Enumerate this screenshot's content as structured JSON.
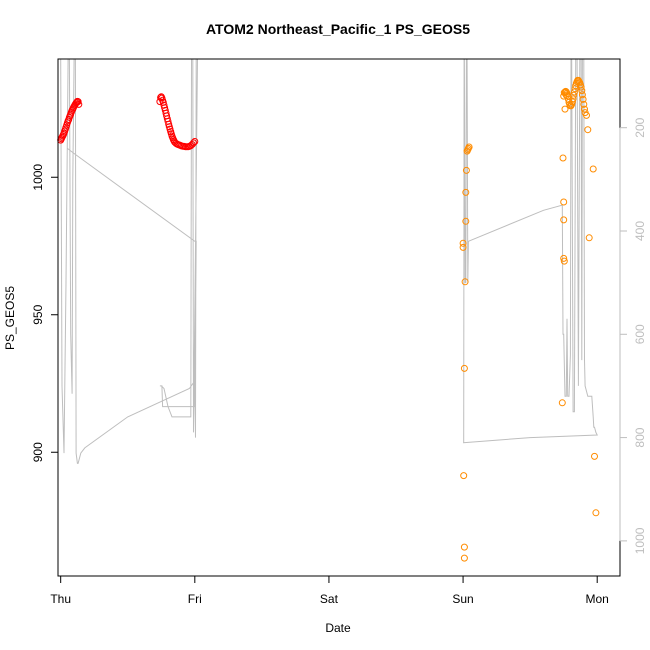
{
  "chart_data": {
    "type": "scatter",
    "title": "ATOM2 Northeast_Pacific_1 PS_GEOS5",
    "xlabel": "Date",
    "ylabel": "PS_GEOS5",
    "x_ticks": [
      "Thu",
      "Fri",
      "Sat",
      "Sun",
      "Mon"
    ],
    "xlim": [
      -0.02,
      4.17
    ],
    "ylim": [
      855,
      1043
    ],
    "y_ticks": [
      900,
      950,
      1000
    ],
    "right_axis": {
      "ylim": [
        1068,
        67
      ],
      "ticks": [
        200,
        400,
        600,
        800,
        1000
      ],
      "color": "#bebebe"
    },
    "colors": {
      "series_1": "#ff0000",
      "series_2": "#ff8c00",
      "altitude_trace": "#bebebe"
    },
    "series": [
      {
        "color": "#ff0000",
        "points": [
          [
            0.0,
            1013.5
          ],
          [
            0.005,
            1014.0
          ],
          [
            0.01,
            1014.5
          ],
          [
            0.015,
            1015.0
          ],
          [
            0.02,
            1015.5
          ],
          [
            0.025,
            1016.0
          ],
          [
            0.03,
            1016.8
          ],
          [
            0.035,
            1017.5
          ],
          [
            0.04,
            1018.2
          ],
          [
            0.045,
            1019.0
          ],
          [
            0.05,
            1019.8
          ],
          [
            0.055,
            1020.5
          ],
          [
            0.06,
            1021.0
          ],
          [
            0.065,
            1021.8
          ],
          [
            0.07,
            1022.4
          ],
          [
            0.075,
            1023.0
          ],
          [
            0.08,
            1023.7
          ],
          [
            0.085,
            1024.3
          ],
          [
            0.09,
            1024.8
          ],
          [
            0.095,
            1025.3
          ],
          [
            0.1,
            1025.8
          ],
          [
            0.105,
            1026.2
          ],
          [
            0.11,
            1026.6
          ],
          [
            0.115,
            1027.0
          ],
          [
            0.12,
            1027.3
          ],
          [
            0.125,
            1027.6
          ],
          [
            0.13,
            1027.5
          ],
          [
            0.135,
            1026.5
          ],
          [
            0.74,
            1027.5
          ],
          [
            0.745,
            1029.0
          ],
          [
            0.75,
            1029.3
          ],
          [
            0.755,
            1028.8
          ],
          [
            0.76,
            1028.0
          ],
          [
            0.765,
            1027.2
          ],
          [
            0.77,
            1026.2
          ],
          [
            0.775,
            1025.3
          ],
          [
            0.78,
            1024.3
          ],
          [
            0.785,
            1023.3
          ],
          [
            0.79,
            1022.3
          ],
          [
            0.795,
            1021.3
          ],
          [
            0.8,
            1020.3
          ],
          [
            0.805,
            1019.3
          ],
          [
            0.81,
            1018.4
          ],
          [
            0.815,
            1017.5
          ],
          [
            0.82,
            1016.6
          ],
          [
            0.825,
            1015.8
          ],
          [
            0.83,
            1015.0
          ],
          [
            0.835,
            1014.3
          ],
          [
            0.84,
            1013.7
          ],
          [
            0.845,
            1013.2
          ],
          [
            0.85,
            1012.8
          ],
          [
            0.86,
            1012.3
          ],
          [
            0.87,
            1012.0
          ],
          [
            0.88,
            1011.8
          ],
          [
            0.89,
            1011.6
          ],
          [
            0.9,
            1011.4
          ],
          [
            0.91,
            1011.3
          ],
          [
            0.92,
            1011.2
          ],
          [
            0.93,
            1011.1
          ],
          [
            0.94,
            1011.1
          ],
          [
            0.95,
            1011.1
          ],
          [
            0.96,
            1011.2
          ],
          [
            0.97,
            1011.5
          ],
          [
            0.98,
            1011.9
          ],
          [
            0.99,
            1012.5
          ],
          [
            1.0,
            1013.0
          ]
        ]
      },
      {
        "color": "#ff8c00",
        "points": [
          [
            3.0,
            976
          ],
          [
            3.0,
            974.5
          ],
          [
            3.005,
            891.5
          ],
          [
            3.01,
            865.5
          ],
          [
            3.01,
            861.5
          ],
          [
            3.01,
            930.5
          ],
          [
            3.015,
            962
          ],
          [
            3.02,
            984
          ],
          [
            3.02,
            994.5
          ],
          [
            3.025,
            1002.5
          ],
          [
            3.03,
            1009.5
          ],
          [
            3.035,
            1010
          ],
          [
            3.04,
            1010.5
          ],
          [
            3.045,
            1011
          ],
          [
            3.74,
            918
          ],
          [
            3.745,
            1007
          ],
          [
            3.75,
            991
          ],
          [
            3.75,
            984.5
          ],
          [
            3.75,
            970.5
          ],
          [
            3.755,
            969.5
          ],
          [
            3.75,
            1029.5
          ],
          [
            3.755,
            1030.8
          ],
          [
            3.76,
            1031.0
          ],
          [
            3.765,
            1031.2
          ],
          [
            3.77,
            1031.0
          ],
          [
            3.775,
            1030.5
          ],
          [
            3.78,
            1029.5
          ],
          [
            3.785,
            1028.3
          ],
          [
            3.79,
            1027.2
          ],
          [
            3.795,
            1026.5
          ],
          [
            3.8,
            1026.0
          ],
          [
            3.805,
            1026.0
          ],
          [
            3.81,
            1026.5
          ],
          [
            3.815,
            1027.4
          ],
          [
            3.82,
            1028.5
          ],
          [
            3.825,
            1029.8
          ],
          [
            3.83,
            1031.0
          ],
          [
            3.835,
            1032.2
          ],
          [
            3.84,
            1033.3
          ],
          [
            3.845,
            1034.2
          ],
          [
            3.85,
            1034.8
          ],
          [
            3.855,
            1035.2
          ],
          [
            3.86,
            1035.2
          ],
          [
            3.865,
            1034.8
          ],
          [
            3.87,
            1034.3
          ],
          [
            3.875,
            1033.6
          ],
          [
            3.88,
            1032.8
          ],
          [
            3.885,
            1031.5
          ],
          [
            3.89,
            1030.0
          ],
          [
            3.895,
            1028.3
          ],
          [
            3.9,
            1026.5
          ],
          [
            3.905,
            1024.8
          ],
          [
            3.91,
            1023.5
          ],
          [
            3.92,
            1022.5
          ],
          [
            3.93,
            1017.3
          ],
          [
            3.76,
            1024.8
          ],
          [
            3.77,
            1029.8
          ],
          [
            3.94,
            978
          ],
          [
            3.97,
            1003
          ],
          [
            3.98,
            898.5
          ],
          [
            3.99,
            878
          ]
        ]
      }
    ],
    "altitude_trace": [
      [
        0.0,
        67
      ],
      [
        0.01,
        700
      ],
      [
        0.025,
        830
      ],
      [
        0.04,
        500
      ],
      [
        0.055,
        67
      ],
      [
        0.065,
        67
      ],
      [
        0.075,
        600
      ],
      [
        0.085,
        715
      ],
      [
        0.09,
        300
      ],
      [
        0.1,
        67
      ],
      [
        0.11,
        67
      ],
      [
        0.115,
        830
      ],
      [
        0.125,
        850
      ],
      [
        0.13,
        850
      ],
      [
        0.15,
        830
      ],
      [
        0.18,
        820
      ],
      [
        0.5,
        760
      ],
      [
        0.96,
        705
      ],
      [
        1.0,
        690
      ],
      [
        1.005,
        800
      ],
      [
        1.01,
        67
      ],
      [
        1.02,
        67
      ],
      [
        0.99,
        790
      ],
      [
        0.985,
        67
      ],
      [
        0.975,
        67
      ],
      [
        0.97,
        760
      ],
      [
        0.9,
        760
      ],
      [
        0.88,
        760
      ],
      [
        0.84,
        760
      ],
      [
        0.83,
        760
      ],
      [
        0.8,
        740
      ],
      [
        0.77,
        740
      ],
      [
        0.76,
        740
      ],
      [
        0.755,
        700
      ],
      [
        0.745,
        700
      ],
      [
        0.74,
        700
      ],
      [
        0.75,
        700
      ],
      [
        0.77,
        705
      ],
      [
        0.8,
        740
      ],
      [
        0.9,
        740
      ],
      [
        1.0,
        740
      ],
      [
        1.01,
        420
      ],
      [
        1.0,
        420
      ],
      [
        0.1,
        250
      ],
      [
        0.05,
        240
      ]
    ],
    "altitude_trace_2": [
      [
        3.0,
        810
      ],
      [
        3.005,
        810
      ],
      [
        3.008,
        67
      ],
      [
        3.01,
        67
      ],
      [
        3.015,
        500
      ],
      [
        3.02,
        500
      ],
      [
        3.025,
        67
      ],
      [
        3.03,
        67
      ],
      [
        3.035,
        500
      ],
      [
        3.04,
        420
      ],
      [
        3.6,
        360
      ],
      [
        3.74,
        350
      ],
      [
        3.745,
        600
      ],
      [
        3.75,
        600
      ],
      [
        3.76,
        720
      ],
      [
        3.77,
        720
      ],
      [
        3.775,
        570
      ],
      [
        3.78,
        720
      ],
      [
        3.79,
        720
      ],
      [
        3.8,
        640
      ],
      [
        3.805,
        67
      ],
      [
        3.81,
        67
      ],
      [
        3.82,
        750
      ],
      [
        3.83,
        750
      ],
      [
        3.84,
        67
      ],
      [
        3.85,
        67
      ],
      [
        3.86,
        700
      ],
      [
        3.87,
        67
      ],
      [
        3.88,
        67
      ],
      [
        3.885,
        650
      ],
      [
        3.89,
        67
      ],
      [
        3.9,
        67
      ],
      [
        3.905,
        650
      ],
      [
        3.91,
        700
      ],
      [
        3.93,
        720
      ],
      [
        3.945,
        720
      ],
      [
        3.96,
        720
      ],
      [
        3.97,
        760
      ],
      [
        3.975,
        780
      ],
      [
        3.98,
        780
      ],
      [
        3.99,
        790
      ],
      [
        4.0,
        795
      ],
      [
        3.5,
        800
      ],
      [
        3.0,
        810
      ]
    ]
  }
}
